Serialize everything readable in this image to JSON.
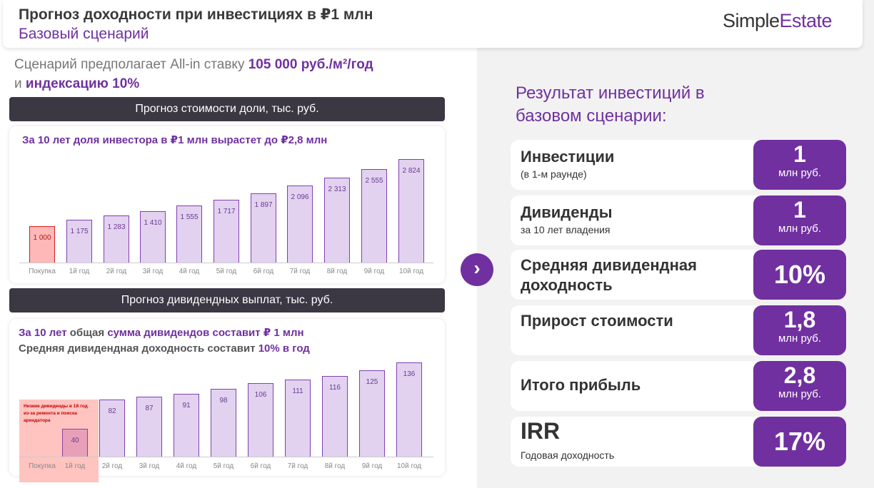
{
  "header": {
    "title": "Прогноз доходности при инвестициях в ₽1 млн",
    "subtitle": "Базовый сценарий",
    "logo_a": "Simple",
    "logo_b": "Estate"
  },
  "intro": {
    "t1": "Сценарий предполагает All-in ставку ",
    "h1": "105 000 руб./м²/год",
    "t2": "и ",
    "h2": "индексацию 10%"
  },
  "chart1_header": "Прогноз стоимости доли, тыс. руб.",
  "chart2_header": "Прогноз дивидендных выплат, тыс. руб.",
  "colors": {
    "accent": "#7030a0",
    "dark": "#3b3743",
    "bar": "#e2d2f0",
    "highlight": "#ffb8b8"
  },
  "chart_data": [
    {
      "type": "bar",
      "title": "За 10 лет доля инвестора в ₽1 млн вырастет до ₽2,8 млн",
      "categories": [
        "Покупка",
        "1й год",
        "2й год",
        "3й год",
        "4й год",
        "5й год",
        "6й год",
        "7й год",
        "8й год",
        "9й год",
        "10й год"
      ],
      "values": [
        1000,
        1175,
        1283,
        1410,
        1555,
        1717,
        1897,
        2096,
        2313,
        2555,
        2824
      ],
      "labels": [
        "1 000",
        "1 175",
        "1 283",
        "1 410",
        "1 555",
        "1 717",
        "1 897",
        "2 096",
        "2 313",
        "2 555",
        "2 824"
      ],
      "highlight_index": 0
    },
    {
      "type": "bar",
      "title_parts": [
        "За 10 лет",
        "общая",
        "сумма дивидендов составит ₽ 1 млн"
      ],
      "subtitle_parts": [
        "Средняя дивидендная доходность составит",
        "10% в год"
      ],
      "categories": [
        "Покупка",
        "1й год",
        "2й год",
        "3й год",
        "4й год",
        "5й год",
        "6й год",
        "7й год",
        "8й год",
        "9й год",
        "10й год"
      ],
      "values": [
        null,
        40,
        82,
        87,
        91,
        98,
        106,
        111,
        116,
        125,
        136
      ],
      "labels": [
        "",
        "40",
        "82",
        "87",
        "91",
        "98",
        "106",
        "111",
        "116",
        "125",
        "136"
      ],
      "annotation": "Низкие дивиденды в 1й год из-за ремонта и поиска арендатора"
    }
  ],
  "results": {
    "title": "Результат инвестиций в базовом сценарии:",
    "rows": [
      {
        "label": "Инвестиции",
        "sub": "(в 1-м раунде)",
        "value": "1",
        "unit": "млн руб."
      },
      {
        "label": "Дивиденды",
        "sub": "за 10 лет владения",
        "value": "1",
        "unit": "млн руб."
      },
      {
        "label": "Средняя дивидендная доходность",
        "sub": "",
        "value": "10%",
        "unit": ""
      },
      {
        "label": "Прирост стоимости",
        "sub": "",
        "value": "1,8",
        "unit": "млн руб."
      },
      {
        "label": "Итого прибыль",
        "sub": "",
        "value": "2,8",
        "unit": "млн руб."
      },
      {
        "label": "IRR",
        "sub": "Годовая доходность",
        "value": "17%",
        "unit": ""
      }
    ]
  }
}
